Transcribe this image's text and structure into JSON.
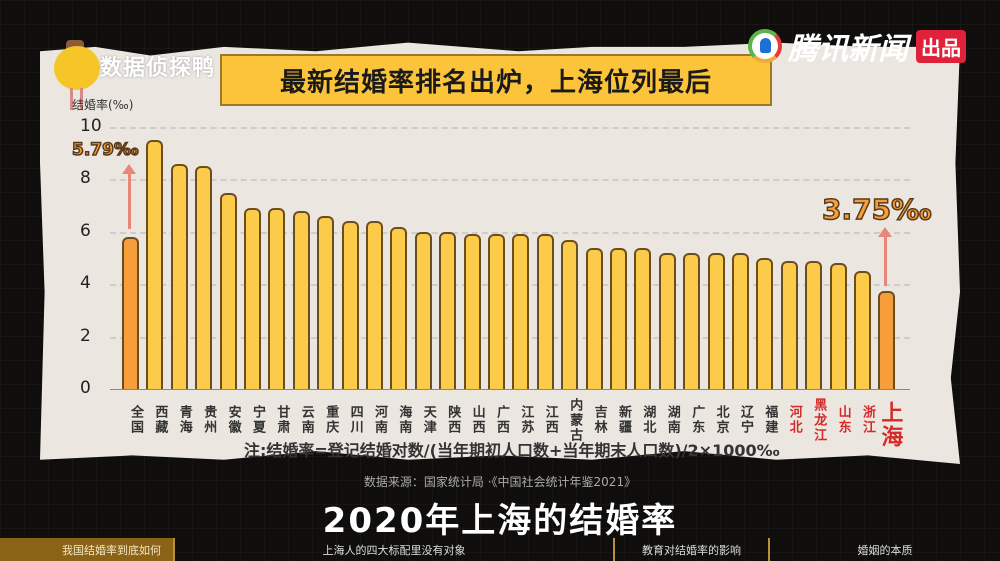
{
  "brand": {
    "channel_name": "数据侦探鸭",
    "publisher": "腾讯新闻",
    "publisher_badge": "出品"
  },
  "header": {
    "title": "最新结婚率排名出炉，上海位列最后"
  },
  "chart_data": {
    "type": "bar",
    "title": "最新结婚率排名出炉，上海位列最后",
    "ylabel": "结婚率(‰)",
    "xlabel": "",
    "ylim": [
      0,
      10
    ],
    "yticks": [
      0,
      2,
      4,
      6,
      8,
      10
    ],
    "grid": true,
    "categories": [
      "全国",
      "西藏",
      "青海",
      "贵州",
      "安徽",
      "宁夏",
      "甘肃",
      "云南",
      "重庆",
      "四川",
      "河南",
      "海南",
      "天津",
      "陕西",
      "山西",
      "广西",
      "江苏",
      "江西",
      "内蒙古",
      "吉林",
      "新疆",
      "湖北",
      "湖南",
      "广东",
      "北京",
      "辽宁",
      "福建",
      "河北",
      "黑龙江",
      "山东",
      "浙江",
      "上海"
    ],
    "values": [
      5.79,
      9.5,
      8.6,
      8.5,
      7.5,
      6.9,
      6.9,
      6.8,
      6.6,
      6.4,
      6.4,
      6.2,
      6.0,
      6.0,
      5.9,
      5.9,
      5.9,
      5.9,
      5.7,
      5.4,
      5.4,
      5.4,
      5.2,
      5.2,
      5.2,
      5.2,
      5.0,
      4.9,
      4.9,
      4.8,
      4.5,
      3.75
    ],
    "highlighted": [
      "全国",
      "上海"
    ],
    "red_labels": [
      "河北",
      "黑龙江",
      "山东",
      "浙江",
      "上海"
    ],
    "annotations": [
      {
        "category": "全国",
        "text": "5.79‰"
      },
      {
        "category": "上海",
        "text": "3.75‰"
      }
    ],
    "note": "注:结婚率=登记结婚对数/(当年期初人口数+当年期末人口数)/2×1000‰",
    "source": "数据来源：国家统计局 ·《中国社会统计年鉴2021》"
  },
  "colors": {
    "bar": "#fdcb4a",
    "highlight": "#f79e3c",
    "red_label": "#d42a2a",
    "title_bg": "#fbc43a"
  },
  "video": {
    "subtitle": "2020年上海的结婚率"
  },
  "nav": {
    "tabs": [
      {
        "label": "我国结婚率到底如何",
        "active": true
      },
      {
        "label": "上海人的四大标配里没有对象",
        "active": false
      },
      {
        "label": "教育对结婚率的影响",
        "active": false
      },
      {
        "label": "婚姻的本质",
        "active": false
      }
    ]
  }
}
